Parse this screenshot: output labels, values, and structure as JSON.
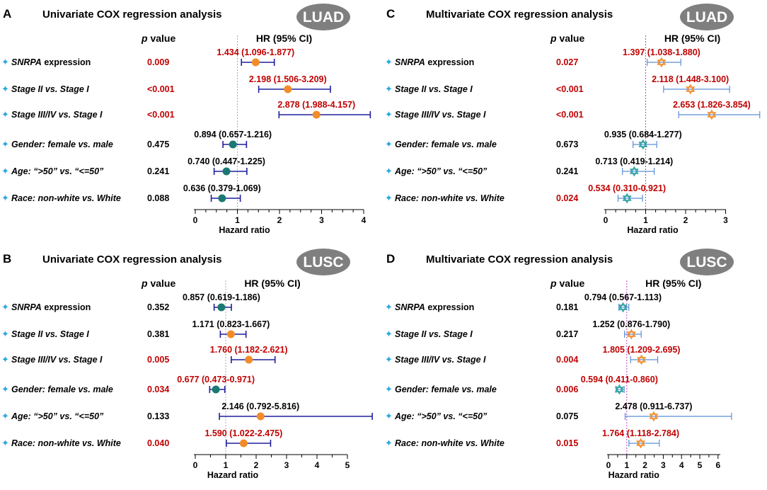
{
  "colors": {
    "significant": "#c00000",
    "normal": "#000000",
    "uni_marker_orange": "#f28c28",
    "uni_marker_teal": "#1a7a72",
    "uni_line": "#1f1f9e",
    "multi_line": "#5b8fd8",
    "multi_marker_orange": "#f28c28",
    "multi_marker_teal": "#2a9fa0",
    "ref_uni": "#b0a0c8",
    "ref_multi": "#c040c0",
    "star": "#2aa8e0",
    "badge": "#7f7f7f"
  },
  "headers": {
    "pvalue_prefix": "p",
    "pvalue_suffix": " value",
    "hr": "HR (95% CI)",
    "xlabel": "Hazard ratio"
  },
  "rows": [
    {
      "label_italic": "SNRPA",
      "label": " expression"
    },
    {
      "label_italic": "",
      "label": "Stage II vs. Stage I"
    },
    {
      "label_italic": "",
      "label": "Stage III/IV vs. Stage I"
    },
    {
      "label_italic": "",
      "label": "Gender: female vs. male"
    },
    {
      "label_italic": "",
      "label": "Age: “>50” vs. “<=50”"
    },
    {
      "label_italic": "",
      "label": "Race: non-white vs. White"
    }
  ],
  "panels": [
    {
      "id": "A",
      "letter": "A",
      "title": "Univariate COX regression analysis",
      "badge": "LUAD",
      "style": "uni",
      "chart_data": {
        "type": "forest",
        "xlim": [
          0,
          4
        ],
        "ticks": [
          "0",
          "1",
          "2",
          "3",
          "4"
        ],
        "series": [
          {
            "hr": 1.434,
            "lo": 1.096,
            "hi": 1.877,
            "text": "1.434 (1.096-1.877)",
            "p": "0.009",
            "sig": true,
            "marker": "orange"
          },
          {
            "hr": 2.198,
            "lo": 1.506,
            "hi": 3.209,
            "text": "2.198 (1.506-3.209)",
            "p": "<0.001",
            "sig": true,
            "marker": "orange"
          },
          {
            "hr": 2.878,
            "lo": 1.988,
            "hi": 4.157,
            "text": "2.878 (1.988-4.157)",
            "p": "<0.001",
            "sig": true,
            "marker": "orange"
          },
          {
            "hr": 0.894,
            "lo": 0.657,
            "hi": 1.216,
            "text": "0.894 (0.657-1.216)",
            "p": "0.475",
            "sig": false,
            "marker": "teal"
          },
          {
            "hr": 0.74,
            "lo": 0.447,
            "hi": 1.225,
            "text": "0.740 (0.447-1.225)",
            "p": "0.241",
            "sig": false,
            "marker": "teal"
          },
          {
            "hr": 0.636,
            "lo": 0.379,
            "hi": 1.069,
            "text": "0.636 (0.379-1.069)",
            "p": "0.088",
            "sig": false,
            "marker": "teal"
          }
        ]
      }
    },
    {
      "id": "C",
      "letter": "C",
      "title": "Multivariate COX regression analysis",
      "badge": "LUAD",
      "style": "multi",
      "chart_data": {
        "type": "forest",
        "xlim": [
          0,
          3
        ],
        "ticks": [
          "0",
          "1",
          "2",
          "3"
        ],
        "series": [
          {
            "hr": 1.397,
            "lo": 1.038,
            "hi": 1.88,
            "text": "1.397 (1.038-1.880)",
            "p": "0.027",
            "sig": true,
            "marker": "orange"
          },
          {
            "hr": 2.118,
            "lo": 1.448,
            "hi": 3.1,
            "text": "2.118 (1.448-3.100)",
            "p": "<0.001",
            "sig": true,
            "marker": "orange"
          },
          {
            "hr": 2.653,
            "lo": 1.826,
            "hi": 3.854,
            "text": "2.653 (1.826-3.854)",
            "p": "<0.001",
            "sig": true,
            "marker": "orange"
          },
          {
            "hr": 0.935,
            "lo": 0.684,
            "hi": 1.277,
            "text": "0.935 (0.684-1.277)",
            "p": "0.673",
            "sig": false,
            "marker": "teal"
          },
          {
            "hr": 0.713,
            "lo": 0.419,
            "hi": 1.214,
            "text": "0.713 (0.419-1.214)",
            "p": "0.241",
            "sig": false,
            "marker": "teal"
          },
          {
            "hr": 0.534,
            "lo": 0.31,
            "hi": 0.921,
            "text": "0.534 (0.310-0.921)",
            "p": "0.024",
            "sig": true,
            "marker": "teal"
          }
        ]
      }
    },
    {
      "id": "B",
      "letter": "B",
      "title": "Univariate COX regression analysis",
      "badge": "LUSC",
      "style": "uni",
      "chart_data": {
        "type": "forest",
        "xlim": [
          0,
          5
        ],
        "ticks": [
          "0",
          "1",
          "2",
          "3",
          "4",
          "5"
        ],
        "series": [
          {
            "hr": 0.857,
            "lo": 0.619,
            "hi": 1.186,
            "text": "0.857 (0.619-1.186)",
            "p": "0.352",
            "sig": false,
            "marker": "teal"
          },
          {
            "hr": 1.171,
            "lo": 0.823,
            "hi": 1.667,
            "text": "1.171 (0.823-1.667)",
            "p": "0.381",
            "sig": false,
            "marker": "orange"
          },
          {
            "hr": 1.76,
            "lo": 1.182,
            "hi": 2.621,
            "text": "1.760 (1.182-2.621)",
            "p": "0.005",
            "sig": true,
            "marker": "orange"
          },
          {
            "hr": 0.677,
            "lo": 0.473,
            "hi": 0.971,
            "text": "0.677 (0.473-0.971)",
            "p": "0.034",
            "sig": true,
            "marker": "teal"
          },
          {
            "hr": 2.146,
            "lo": 0.792,
            "hi": 5.816,
            "text": "2.146 (0.792-5.816)",
            "p": "0.133",
            "sig": false,
            "marker": "orange"
          },
          {
            "hr": 1.59,
            "lo": 1.022,
            "hi": 2.475,
            "text": "1.590 (1.022-2.475)",
            "p": "0.040",
            "sig": true,
            "marker": "orange"
          }
        ]
      }
    },
    {
      "id": "D",
      "letter": "D",
      "title": "Multivariate COX regression analysis",
      "badge": "LUSC",
      "style": "multi",
      "chart_data": {
        "type": "forest",
        "xlim": [
          0,
          6
        ],
        "ticks": [
          "0",
          "1",
          "2",
          "3",
          "4",
          "5",
          "6"
        ],
        "series": [
          {
            "hr": 0.794,
            "lo": 0.567,
            "hi": 1.113,
            "text": "0.794 (0.567-1.113)",
            "p": "0.181",
            "sig": false,
            "marker": "teal"
          },
          {
            "hr": 1.252,
            "lo": 0.876,
            "hi": 1.79,
            "text": "1.252 (0.876-1.790)",
            "p": "0.217",
            "sig": false,
            "marker": "orange"
          },
          {
            "hr": 1.805,
            "lo": 1.209,
            "hi": 2.695,
            "text": "1.805 (1.209-2.695)",
            "p": "0.004",
            "sig": true,
            "marker": "orange"
          },
          {
            "hr": 0.594,
            "lo": 0.411,
            "hi": 0.86,
            "text": "0.594 (0.411-0.860)",
            "p": "0.006",
            "sig": true,
            "marker": "teal"
          },
          {
            "hr": 2.478,
            "lo": 0.911,
            "hi": 6.737,
            "text": "2.478 (0.911-6.737)",
            "p": "0.075",
            "sig": false,
            "marker": "orange"
          },
          {
            "hr": 1.764,
            "lo": 1.118,
            "hi": 2.784,
            "text": "1.764 (1.118-2.784)",
            "p": "0.015",
            "sig": true,
            "marker": "orange"
          }
        ]
      }
    }
  ]
}
